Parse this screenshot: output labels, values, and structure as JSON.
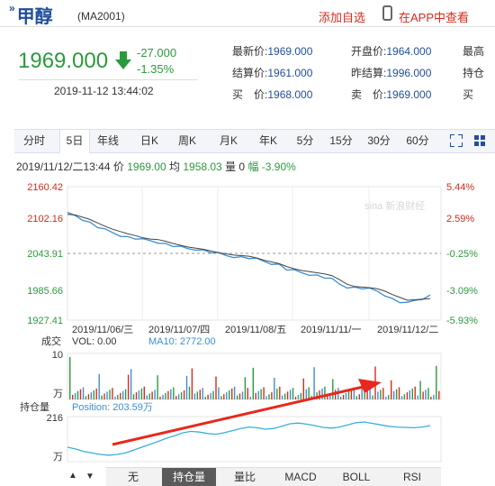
{
  "header": {
    "name": "甲醇",
    "code": "(MA2001)",
    "add_watch": "添加自选",
    "app_view": "在APP中查看"
  },
  "quote": {
    "price": "1969.000",
    "change": "-27.000",
    "change_pct": "-1.35%",
    "timestamp": "2019-11-12 13:44:02",
    "fields": [
      {
        "label": "最新价:",
        "value": "1969.000"
      },
      {
        "label": "开盘价:",
        "value": "1964.000"
      },
      {
        "label": "最高"
      },
      {
        "label": "结算价:",
        "value": "1961.000"
      },
      {
        "label": "昨结算:",
        "value": "1996.000"
      },
      {
        "label": "持仓"
      },
      {
        "label": "买　价:",
        "value": "1968.000"
      },
      {
        "label": "卖　价:",
        "value": "1969.000"
      },
      {
        "label": "买"
      }
    ]
  },
  "toolbar": {
    "tabs": [
      "分时",
      "5日",
      "年线",
      "日K",
      "周K",
      "月K",
      "年K",
      "5分",
      "15分",
      "30分",
      "60分"
    ],
    "active": "5日"
  },
  "info": {
    "datetime": "2019/11/12/二13:44",
    "price_label": "价",
    "price": "1969.00",
    "avg_label": "均",
    "avg": "1958.03",
    "volume": "量 0",
    "pct": "幅 -3.90%"
  },
  "chart_data": {
    "type": "line",
    "y_left_ticks": [
      "2160.42",
      "2102.16",
      "2043.91",
      "1985.66",
      "1927.41"
    ],
    "y_right_ticks": [
      "5.44%",
      "2.59%",
      "-0.25%",
      "-3.09%",
      "-5.93%"
    ],
    "ylim": [
      1927.41,
      2160.42
    ],
    "reference": 2043.91,
    "x_labels": [
      "2019/11/06/三",
      "2019/11/07/四",
      "2019/11/08/五",
      "2019/11/11/一",
      "2019/11/12/二"
    ],
    "series": [
      {
        "values": [
          2113,
          2110,
          2104,
          2097,
          2090,
          2084,
          2080,
          2076,
          2072,
          2070,
          2067,
          2066,
          2064,
          2060,
          2057,
          2054,
          2052,
          2052,
          2049,
          2046,
          2043,
          2040,
          2039,
          2037,
          2036,
          2033,
          2030,
          2027,
          2024,
          2016,
          2013,
          2010,
          2008,
          2005,
          2002,
          1998,
          1990,
          1986,
          1984,
          1983,
          1981,
          1978,
          1972,
          1964,
          1959,
          1956,
          1962,
          1966,
          1970
        ]
      },
      {
        "values": [
          2112,
          2111,
          2107,
          2103,
          2097,
          2091,
          2086,
          2082,
          2078,
          2075,
          2071,
          2069,
          2068,
          2065,
          2061,
          2058,
          2055,
          2053,
          2051,
          2048,
          2045,
          2043,
          2041,
          2040,
          2039,
          2036,
          2032,
          2029,
          2026,
          2021,
          2017,
          2014,
          2012,
          2010,
          2008,
          2005,
          1998,
          1990,
          1986,
          1985,
          1984,
          1982,
          1978,
          1972,
          1967,
          1962,
          1963,
          1964,
          1965
        ]
      }
    ],
    "volume_panel": {
      "label": "成交",
      "vol": "VOL: 0.00",
      "ma10": "MA10: 2772.00",
      "ticks": [
        "10",
        "万"
      ]
    },
    "position_panel": {
      "label": "持仓量",
      "position": "Position: 203.59万",
      "ticks": [
        "216",
        "万"
      ],
      "values": [
        0.3,
        0.25,
        0.18,
        0.14,
        0.1,
        0.08,
        0.1,
        0.14,
        0.22,
        0.3,
        0.38,
        0.46,
        0.55,
        0.62,
        0.7,
        0.74,
        0.72,
        0.68,
        0.66,
        0.7,
        0.76,
        0.82,
        0.86,
        0.84,
        0.8,
        0.82,
        0.88,
        0.95,
        0.97,
        0.94,
        0.9,
        0.85,
        0.83,
        0.86,
        0.92,
        0.98,
        1.0,
        0.96,
        0.92,
        0.88,
        0.86,
        0.85,
        0.84,
        0.86,
        0.9
      ]
    }
  },
  "sub_buttons": [
    "无",
    "持仓量",
    "量比",
    "MACD",
    "BOLL",
    "RSI"
  ],
  "sub_active": "持仓量",
  "nav": {
    "up": "▲",
    "down": "▼"
  }
}
